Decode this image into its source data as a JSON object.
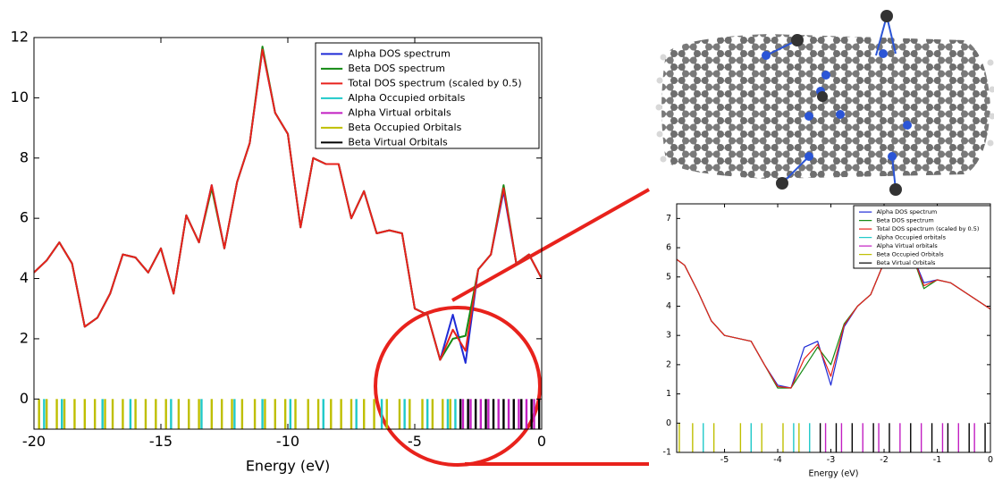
{
  "chart_data": [
    {
      "type": "line",
      "xlabel": "Energy (eV)",
      "x": [
        -20,
        -19.5,
        -19,
        -18.5,
        -18,
        -17.5,
        -17,
        -16.5,
        -16,
        -15.5,
        -15,
        -14.5,
        -14,
        -13.5,
        -13,
        -12.5,
        -12,
        -11.5,
        -11,
        -10.5,
        -10,
        -9.5,
        -9,
        -8.5,
        -8,
        -7.5,
        -7,
        -6.5,
        -6,
        -5.5,
        -5,
        -4.5,
        -4,
        -3.5,
        -3,
        -2.5,
        -2,
        -1.5,
        -1,
        -0.5,
        0
      ],
      "series": [
        {
          "name": "Alpha DOS spectrum",
          "color": "#1f2bd6",
          "values": [
            4.2,
            4.6,
            5.2,
            4.5,
            2.4,
            2.7,
            3.5,
            4.8,
            4.7,
            4.2,
            5.0,
            3.5,
            6.1,
            5.2,
            7.1,
            5.0,
            7.2,
            8.5,
            11.6,
            9.5,
            8.8,
            5.7,
            8.0,
            7.8,
            7.8,
            6.0,
            6.9,
            5.5,
            5.6,
            5.5,
            3.0,
            2.8,
            1.3,
            2.8,
            1.2,
            4.3,
            4.8,
            6.9,
            4.5,
            4.8,
            4.0
          ]
        },
        {
          "name": "Beta DOS spectrum",
          "color": "#138a13",
          "values": [
            4.2,
            4.6,
            5.2,
            4.5,
            2.4,
            2.7,
            3.5,
            4.8,
            4.7,
            4.2,
            5.0,
            3.5,
            6.1,
            5.2,
            7.0,
            5.0,
            7.2,
            8.5,
            11.7,
            9.5,
            8.8,
            5.7,
            8.0,
            7.8,
            7.8,
            6.0,
            6.9,
            5.5,
            5.6,
            5.5,
            3.0,
            2.8,
            1.3,
            2.0,
            2.1,
            4.3,
            4.8,
            7.1,
            4.5,
            4.8,
            4.0
          ]
        },
        {
          "name": "Total DOS spectrum (scaled by 0.5)",
          "color": "#e8221c",
          "values": [
            4.2,
            4.6,
            5.2,
            4.5,
            2.4,
            2.7,
            3.5,
            4.8,
            4.7,
            4.2,
            5.0,
            3.5,
            6.1,
            5.2,
            7.1,
            5.0,
            7.2,
            8.5,
            11.6,
            9.5,
            8.8,
            5.7,
            8.0,
            7.8,
            7.8,
            6.0,
            6.9,
            5.5,
            5.6,
            5.5,
            3.0,
            2.8,
            1.3,
            2.3,
            1.6,
            4.3,
            4.8,
            7.0,
            4.5,
            4.8,
            4.0
          ]
        }
      ],
      "orbitals": [
        {
          "name": "Alpha Occupied orbitals",
          "color": "#1fc9c9",
          "energies": [
            -19.6,
            -18.9,
            -17.3,
            -16.2,
            -14.6,
            -13.4,
            -12.1,
            -11.0,
            -9.9,
            -8.6,
            -7.3,
            -6.3,
            -5.4,
            -4.5,
            -3.7,
            -3.4
          ]
        },
        {
          "name": "Alpha Virtual orbitals",
          "color": "#c21fc2",
          "energies": [
            -3.1,
            -2.8,
            -2.4,
            -2.1,
            -1.7,
            -1.3,
            -0.9,
            -0.6,
            -0.3
          ]
        },
        {
          "name": "Beta Occupied Orbitals",
          "color": "#bfbf00",
          "energies": [
            -19.8,
            -19.5,
            -19.1,
            -18.8,
            -18.4,
            -18.0,
            -17.6,
            -17.2,
            -16.9,
            -16.5,
            -16.0,
            -15.6,
            -15.2,
            -14.8,
            -14.3,
            -13.9,
            -13.5,
            -13.0,
            -12.6,
            -12.2,
            -11.8,
            -11.3,
            -10.9,
            -10.5,
            -10.1,
            -9.7,
            -9.2,
            -8.8,
            -8.3,
            -7.9,
            -7.5,
            -7.0,
            -6.6,
            -6.1,
            -5.6,
            -5.2,
            -4.7,
            -4.3,
            -3.9,
            -3.6
          ]
        },
        {
          "name": "Beta Virtual Orbitals",
          "color": "#000000",
          "energies": [
            -3.2,
            -2.9,
            -2.6,
            -2.2,
            -1.9,
            -1.5,
            -1.1,
            -0.8,
            -0.4,
            -0.1
          ]
        }
      ],
      "xlim": [
        -20,
        0
      ],
      "ylim": [
        -1,
        12
      ],
      "xticks": [
        -20,
        -15,
        -10,
        -5,
        0
      ],
      "yticks": [
        0,
        2,
        4,
        6,
        8,
        10,
        12
      ],
      "legend": "upper right"
    },
    {
      "type": "line",
      "xlabel": "Energy (eV)",
      "x": [
        -5.9,
        -5.75,
        -5.5,
        -5.25,
        -5,
        -4.75,
        -4.5,
        -4.25,
        -4,
        -3.75,
        -3.5,
        -3.25,
        -3,
        -2.75,
        -2.5,
        -2.25,
        -2,
        -1.75,
        -1.5,
        -1.25,
        -1,
        -0.75,
        -0.5,
        -0.25,
        0
      ],
      "series": [
        {
          "name": "Alpha DOS spectrum",
          "color": "#1f2bd6",
          "values": [
            5.6,
            5.4,
            4.5,
            3.5,
            3.0,
            2.9,
            2.8,
            2.0,
            1.3,
            1.2,
            2.6,
            2.8,
            1.3,
            3.3,
            4.0,
            4.4,
            5.5,
            6.0,
            5.9,
            4.8,
            4.9,
            4.8,
            4.5,
            4.2,
            3.9
          ]
        },
        {
          "name": "Beta DOS spectrum",
          "color": "#138a13",
          "values": [
            5.6,
            5.4,
            4.5,
            3.5,
            3.0,
            2.9,
            2.8,
            2.0,
            1.2,
            1.2,
            1.9,
            2.6,
            2.0,
            3.4,
            4.0,
            4.4,
            5.5,
            6.0,
            5.9,
            4.6,
            4.9,
            4.8,
            4.5,
            4.2,
            3.9
          ]
        },
        {
          "name": "Total DOS spectrum (scaled by 0.5)",
          "color": "#e8221c",
          "values": [
            5.6,
            5.4,
            4.5,
            3.5,
            3.0,
            2.9,
            2.8,
            2.0,
            1.25,
            1.2,
            2.2,
            2.7,
            1.6,
            3.35,
            4.0,
            4.4,
            5.5,
            6.0,
            5.9,
            4.7,
            4.9,
            4.8,
            4.5,
            4.2,
            3.9
          ]
        }
      ],
      "orbitals": [
        {
          "name": "Alpha Occupied orbitals",
          "color": "#1fc9c9",
          "energies": [
            -5.4,
            -4.5,
            -3.7,
            -3.4
          ]
        },
        {
          "name": "Alpha Virtual orbitals",
          "color": "#c21fc2",
          "energies": [
            -3.1,
            -2.8,
            -2.4,
            -2.1,
            -1.7,
            -1.3,
            -0.9,
            -0.6,
            -0.3
          ]
        },
        {
          "name": "Beta Occupied Orbitals",
          "color": "#bfbf00",
          "energies": [
            -5.85,
            -5.6,
            -5.2,
            -4.7,
            -4.3,
            -3.9,
            -3.6
          ]
        },
        {
          "name": "Beta Virtual Orbitals",
          "color": "#000000",
          "energies": [
            -3.2,
            -2.9,
            -2.6,
            -2.2,
            -1.9,
            -1.5,
            -1.1,
            -0.8,
            -0.4,
            -0.1
          ]
        }
      ],
      "xlim": [
        -5.9,
        0
      ],
      "ylim": [
        -1,
        7.5
      ],
      "xticks": [
        -5,
        -4,
        -3,
        -2,
        -1,
        0
      ],
      "yticks": [
        -1,
        0,
        1,
        2,
        3,
        4,
        5,
        6,
        7
      ],
      "legend": "upper right"
    }
  ]
}
